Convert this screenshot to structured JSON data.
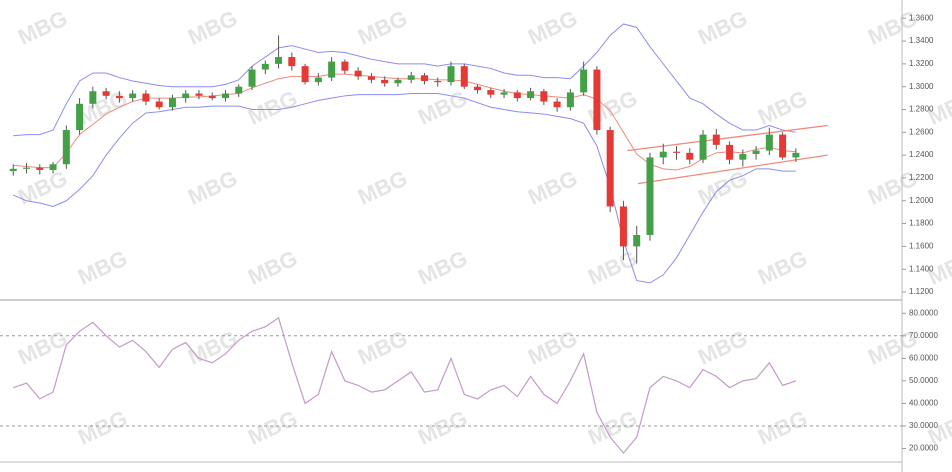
{
  "watermark": "MBG",
  "chart_data": [
    {
      "type": "candlestick",
      "xlim": [
        -1,
        67
      ],
      "ylim": [
        1.113,
        1.376
      ],
      "yticks": [
        {
          "value": 1.12,
          "label": "1.1200"
        },
        {
          "value": 1.14,
          "label": "1.1400"
        },
        {
          "value": 1.16,
          "label": "1.1600"
        },
        {
          "value": 1.18,
          "label": "1.1800"
        },
        {
          "value": 1.2,
          "label": "1.2000"
        },
        {
          "value": 1.22,
          "label": "1.2200"
        },
        {
          "value": 1.24,
          "label": "1.2400"
        },
        {
          "value": 1.26,
          "label": "1.2600"
        },
        {
          "value": 1.28,
          "label": "1.2800"
        },
        {
          "value": 1.3,
          "label": "1.3000"
        },
        {
          "value": 1.32,
          "label": "1.3200"
        },
        {
          "value": 1.34,
          "label": "1.3400"
        },
        {
          "value": 1.36,
          "label": "1.3600"
        }
      ],
      "up_color": "#43a047",
      "down_color": "#e53935",
      "open": [
        1.226,
        1.228,
        1.229,
        1.227,
        1.232,
        1.262,
        1.285,
        1.296,
        1.292,
        1.29,
        1.294,
        1.287,
        1.282,
        1.29,
        1.294,
        1.292,
        1.29,
        1.294,
        1.3,
        1.315,
        1.32,
        1.326,
        1.318,
        1.304,
        1.308,
        1.322,
        1.314,
        1.309,
        1.306,
        1.303,
        1.306,
        1.31,
        1.305,
        1.304,
        1.318,
        1.3,
        1.297,
        1.293,
        1.295,
        1.29,
        1.296,
        1.287,
        1.282,
        1.295,
        1.315,
        1.262,
        1.195,
        1.16,
        1.17,
        1.238,
        1.243,
        1.242,
        1.236,
        1.258,
        1.249,
        1.236,
        1.241,
        1.244,
        1.258,
        1.238
      ],
      "high": [
        1.232,
        1.233,
        1.232,
        1.234,
        1.266,
        1.29,
        1.3,
        1.299,
        1.296,
        1.297,
        1.297,
        1.29,
        1.293,
        1.297,
        1.297,
        1.295,
        1.297,
        1.302,
        1.318,
        1.323,
        1.345,
        1.33,
        1.32,
        1.312,
        1.326,
        1.324,
        1.317,
        1.312,
        1.309,
        1.308,
        1.313,
        1.312,
        1.308,
        1.322,
        1.32,
        1.302,
        1.299,
        1.298,
        1.297,
        1.299,
        1.298,
        1.29,
        1.298,
        1.322,
        1.318,
        1.265,
        1.2,
        1.178,
        1.242,
        1.25,
        1.248,
        1.246,
        1.262,
        1.263,
        1.252,
        1.245,
        1.248,
        1.264,
        1.26,
        1.246
      ],
      "low": [
        1.222,
        1.224,
        1.223,
        1.224,
        1.228,
        1.258,
        1.281,
        1.289,
        1.286,
        1.287,
        1.284,
        1.28,
        1.279,
        1.286,
        1.289,
        1.288,
        1.287,
        1.291,
        1.297,
        1.311,
        1.316,
        1.314,
        1.302,
        1.301,
        1.305,
        1.311,
        1.306,
        1.303,
        1.3,
        1.3,
        1.303,
        1.302,
        1.3,
        1.301,
        1.298,
        1.294,
        1.29,
        1.29,
        1.287,
        1.288,
        1.284,
        1.278,
        1.279,
        1.292,
        1.258,
        1.19,
        1.148,
        1.145,
        1.165,
        1.232,
        1.236,
        1.232,
        1.233,
        1.245,
        1.232,
        1.23,
        1.236,
        1.24,
        1.236,
        1.234
      ],
      "close": [
        1.228,
        1.229,
        1.227,
        1.232,
        1.262,
        1.285,
        1.296,
        1.292,
        1.29,
        1.294,
        1.287,
        1.282,
        1.29,
        1.294,
        1.292,
        1.29,
        1.294,
        1.3,
        1.315,
        1.32,
        1.326,
        1.318,
        1.304,
        1.308,
        1.322,
        1.314,
        1.309,
        1.306,
        1.303,
        1.306,
        1.31,
        1.305,
        1.304,
        1.318,
        1.3,
        1.297,
        1.293,
        1.295,
        1.29,
        1.296,
        1.287,
        1.282,
        1.295,
        1.315,
        1.262,
        1.195,
        1.16,
        1.17,
        1.238,
        1.243,
        1.242,
        1.236,
        1.258,
        1.249,
        1.236,
        1.241,
        1.244,
        1.258,
        1.238,
        1.242
      ],
      "series": [
        {
          "color": "#8c8cf0",
          "values": [
            1.257,
            1.258,
            1.258,
            1.262,
            1.285,
            1.305,
            1.312,
            1.312,
            1.308,
            1.305,
            1.303,
            1.301,
            1.3,
            1.3,
            1.3,
            1.3,
            1.302,
            1.306,
            1.318,
            1.326,
            1.334,
            1.336,
            1.333,
            1.33,
            1.331,
            1.33,
            1.327,
            1.324,
            1.322,
            1.32,
            1.32,
            1.32,
            1.318,
            1.32,
            1.32,
            1.318,
            1.316,
            1.312,
            1.31,
            1.31,
            1.308,
            1.308,
            1.307,
            1.318,
            1.33,
            1.345,
            1.355,
            1.352,
            1.335,
            1.32,
            1.305,
            1.29,
            1.285,
            1.276,
            1.268,
            1.262,
            1.262,
            1.266,
            1.262,
            1.26
          ]
        },
        {
          "color": "#8c8cf0",
          "values": [
            1.205,
            1.2,
            1.198,
            1.195,
            1.2,
            1.21,
            1.222,
            1.24,
            1.255,
            1.268,
            1.277,
            1.278,
            1.28,
            1.282,
            1.282,
            1.283,
            1.283,
            1.283,
            1.28,
            1.28,
            1.28,
            1.282,
            1.285,
            1.288,
            1.29,
            1.292,
            1.293,
            1.293,
            1.293,
            1.293,
            1.294,
            1.294,
            1.294,
            1.292,
            1.29,
            1.286,
            1.282,
            1.28,
            1.278,
            1.277,
            1.276,
            1.274,
            1.272,
            1.268,
            1.248,
            1.212,
            1.165,
            1.13,
            1.128,
            1.135,
            1.15,
            1.17,
            1.19,
            1.208,
            1.218,
            1.222,
            1.228,
            1.228,
            1.226,
            1.226
          ]
        },
        {
          "color": "#f08a7a",
          "values": [
            1.231,
            1.23,
            1.229,
            1.229,
            1.242,
            1.258,
            1.267,
            1.276,
            1.282,
            1.287,
            1.29,
            1.29,
            1.29,
            1.291,
            1.291,
            1.292,
            1.293,
            1.294,
            1.299,
            1.303,
            1.307,
            1.309,
            1.309,
            1.309,
            1.311,
            1.311,
            1.31,
            1.309,
            1.308,
            1.307,
            1.307,
            1.307,
            1.306,
            1.306,
            1.305,
            1.302,
            1.299,
            1.296,
            1.294,
            1.293,
            1.292,
            1.291,
            1.29,
            1.293,
            1.289,
            1.279,
            1.26,
            1.241,
            1.232,
            1.228,
            1.227,
            1.23,
            1.237,
            1.242,
            1.243,
            1.242,
            1.245,
            1.247,
            1.244,
            1.243
          ]
        }
      ],
      "lines": [
        {
          "color": "#f08a7a",
          "x": [
            46.3,
            61.4
          ],
          "values": [
            1.244,
            1.266
          ]
        },
        {
          "color": "#f08a7a",
          "x": [
            47.1,
            61.4
          ],
          "values": [
            1.215,
            1.24
          ]
        }
      ]
    },
    {
      "type": "line",
      "xlim": [
        -1,
        67
      ],
      "ylim": [
        14,
        85
      ],
      "yticks": [
        {
          "value": 20,
          "label": "20.0000"
        },
        {
          "value": 30,
          "label": "30.0000"
        },
        {
          "value": 40,
          "label": "40.0000"
        },
        {
          "value": 50,
          "label": "50.0000"
        },
        {
          "value": 60,
          "label": "60.0000"
        },
        {
          "value": 70,
          "label": "70.0000"
        },
        {
          "value": 80,
          "label": "80.0000"
        }
      ],
      "ref_lines": [
        70,
        30
      ],
      "color": "#c49ac9",
      "values": [
        47,
        49,
        42,
        45,
        66,
        72,
        76,
        70,
        65,
        68,
        63,
        56,
        64,
        67,
        60,
        58,
        62,
        68,
        72,
        74,
        78,
        58,
        40,
        44,
        63,
        50,
        48,
        45,
        46,
        50,
        54,
        45,
        46,
        60,
        44,
        42,
        46,
        48,
        43,
        52,
        44,
        40,
        50,
        62,
        36,
        25,
        18,
        25,
        47,
        52,
        50,
        47,
        55,
        52,
        47,
        50,
        51,
        58,
        48,
        50
      ]
    }
  ]
}
